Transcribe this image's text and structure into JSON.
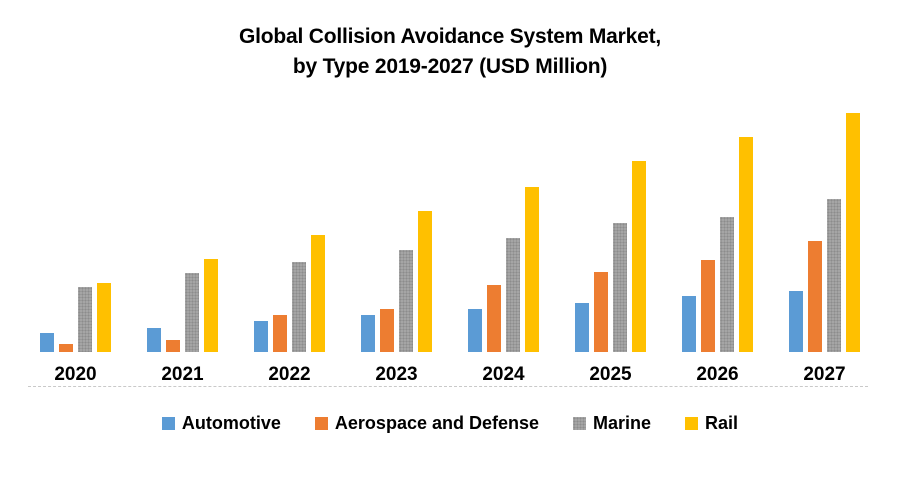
{
  "title": {
    "line1": "Global Collision Avoidance System Market,",
    "line2": "by Type 2019-2027 (USD Million)"
  },
  "chart_data": {
    "type": "bar",
    "title": "Global Collision Avoidance System Market, by Type 2019-2027 (USD Million)",
    "categories": [
      "2020",
      "2021",
      "2022",
      "2023",
      "2024",
      "2025",
      "2026",
      "2027"
    ],
    "series": [
      {
        "name": "Automotive",
        "color": "#5B9BD5",
        "texture": "solid",
        "values": [
          19,
          24,
          31,
          37,
          43,
          49,
          56,
          61
        ]
      },
      {
        "name": "Aerospace and Defense",
        "color": "#ED7D31",
        "texture": "solid",
        "values": [
          8,
          12,
          37,
          43,
          67,
          80,
          92,
          111
        ]
      },
      {
        "name": "Marine",
        "color": "#A5A5A5",
        "texture": "stipple",
        "values": [
          65,
          79,
          90,
          102,
          114,
          129,
          135,
          153
        ]
      },
      {
        "name": "Rail",
        "color": "#FFC000",
        "texture": "solid",
        "values": [
          69,
          93,
          117,
          141,
          165,
          191,
          215,
          239
        ]
      }
    ],
    "xlabel": "",
    "ylabel": "",
    "value_unit": "relative bar height in px; y-axis is not labeled in the source chart",
    "ylim": [
      0,
      245
    ],
    "grid": false,
    "y_axis_visible": false,
    "legend_position": "bottom",
    "axis_line_color": "#C9C9C9",
    "text_color": "#000000",
    "background_color": "#FFFFFF"
  }
}
